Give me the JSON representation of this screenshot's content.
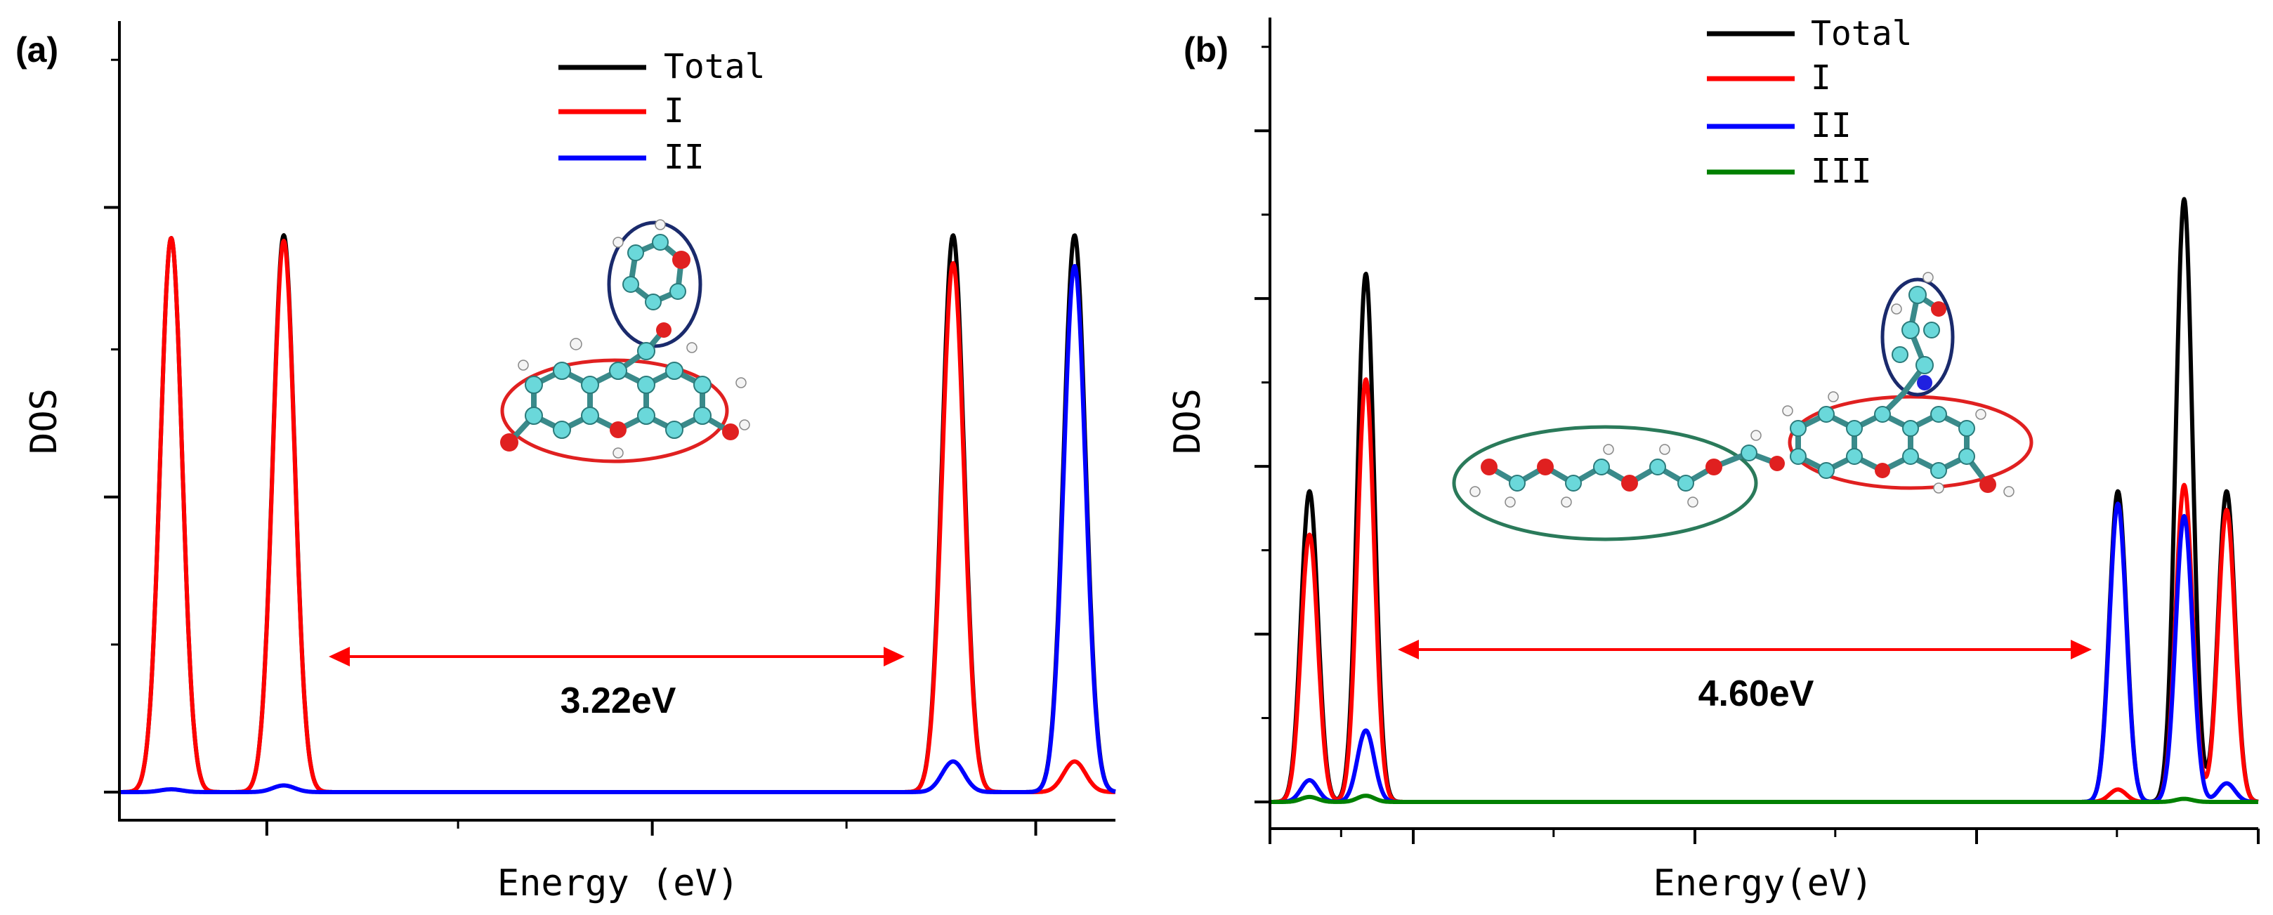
{
  "chart_data": [
    {
      "type": "line",
      "panel_label": "(a)",
      "xlabel": "Energy (eV)",
      "ylabel": "DOS",
      "xlim": [
        0,
        1
      ],
      "ylim": [
        0,
        1
      ],
      "legend": [
        "Total",
        "I",
        "II"
      ],
      "legend_position": "top-center",
      "gap_annotation": "3.22eV",
      "gap_range": [
        0.2,
        0.79
      ],
      "series": [
        {
          "name": "Total",
          "color": "#000000",
          "sigma": 0.011,
          "peaks": [
            {
              "x": 0.052,
              "h": 0.995
            },
            {
              "x": 0.165,
              "h": 1.0
            },
            {
              "x": 0.837,
              "h": 1.0
            },
            {
              "x": 0.959,
              "h": 1.0
            }
          ]
        },
        {
          "name": "I",
          "color": "#ff0000",
          "sigma": 0.011,
          "peaks": [
            {
              "x": 0.052,
              "h": 0.995
            },
            {
              "x": 0.165,
              "h": 0.99
            },
            {
              "x": 0.837,
              "h": 0.95
            },
            {
              "x": 0.959,
              "h": 0.055
            }
          ]
        },
        {
          "name": "II",
          "color": "#0000ff",
          "sigma": 0.011,
          "peaks": [
            {
              "x": 0.052,
              "h": 0.005
            },
            {
              "x": 0.165,
              "h": 0.012
            },
            {
              "x": 0.837,
              "h": 0.055
            },
            {
              "x": 0.959,
              "h": 0.945
            }
          ]
        }
      ]
    },
    {
      "type": "line",
      "panel_label": "(b)",
      "xlabel": "Energy(eV)",
      "ylabel": "DOS",
      "xlim": [
        0,
        1
      ],
      "ylim": [
        0,
        1
      ],
      "legend": [
        "Total",
        "I",
        "II",
        "III"
      ],
      "legend_position": "top-center",
      "gap_annotation": "4.60eV",
      "gap_range": [
        0.13,
        0.825
      ],
      "series": [
        {
          "name": "Total",
          "color": "#000000",
          "sigma": 0.0085,
          "peaks": [
            {
              "x": 0.04,
              "h": 0.5
            },
            {
              "x": 0.097,
              "h": 0.85
            },
            {
              "x": 0.858,
              "h": 0.5
            },
            {
              "x": 0.925,
              "h": 0.97
            },
            {
              "x": 0.968,
              "h": 0.5
            }
          ]
        },
        {
          "name": "I",
          "color": "#ff0000",
          "sigma": 0.0085,
          "peaks": [
            {
              "x": 0.04,
              "h": 0.43
            },
            {
              "x": 0.097,
              "h": 0.68
            },
            {
              "x": 0.858,
              "h": 0.02
            },
            {
              "x": 0.925,
              "h": 0.51
            },
            {
              "x": 0.968,
              "h": 0.47
            }
          ]
        },
        {
          "name": "II",
          "color": "#0000ff",
          "sigma": 0.0085,
          "peaks": [
            {
              "x": 0.04,
              "h": 0.035
            },
            {
              "x": 0.097,
              "h": 0.115
            },
            {
              "x": 0.858,
              "h": 0.48
            },
            {
              "x": 0.925,
              "h": 0.46
            },
            {
              "x": 0.968,
              "h": 0.03
            }
          ]
        },
        {
          "name": "III",
          "color": "#008000",
          "sigma": 0.0085,
          "peaks": [
            {
              "x": 0.04,
              "h": 0.008
            },
            {
              "x": 0.097,
              "h": 0.01
            },
            {
              "x": 0.858,
              "h": 0.0
            },
            {
              "x": 0.925,
              "h": 0.005
            },
            {
              "x": 0.968,
              "h": 0.0
            }
          ]
        }
      ]
    }
  ]
}
